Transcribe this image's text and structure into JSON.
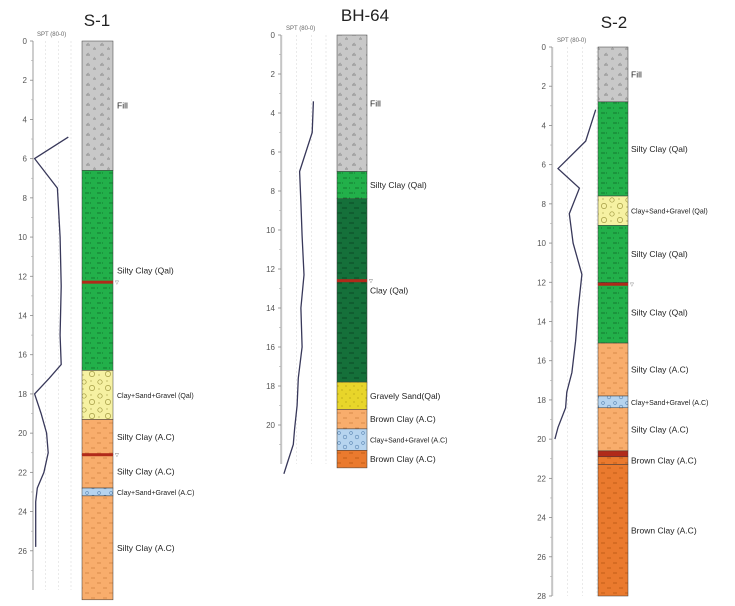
{
  "colors": {
    "fill": "#c8c8c8",
    "silty_clay_qal": "#22b04a",
    "clay_qal": "#15703a",
    "clay_sand_gravel_qal": "#f6f1a2",
    "silty_clay_ac": "#f8ad6c",
    "brown_clay_ac": "#ea7a2e",
    "gravely_sand_qal": "#e8d52a",
    "clay_sand_gravel_ac": "#b6d4ef",
    "water_line": "#b02a1a",
    "spt_curve": "#38385a"
  },
  "boreholes": [
    {
      "name": "S-1",
      "spt_label": "SPT (80-0)",
      "depth_ticks": [
        "0",
        "2",
        "4",
        "6",
        "8",
        "10",
        "12",
        "14",
        "16",
        "18",
        "20",
        "22",
        "24",
        "26"
      ],
      "water_marks": [
        {
          "depth": 12.3,
          "label": "▽"
        },
        {
          "depth": 21.1,
          "label": "▽"
        }
      ],
      "layers": [
        {
          "top": 0,
          "bottom": 6.6,
          "color": "fill",
          "label": "Fill"
        },
        {
          "top": 6.6,
          "bottom": 16.8,
          "color": "silty_clay_qal",
          "label": "Silty Clay (Qal)"
        },
        {
          "top": 16.8,
          "bottom": 19.3,
          "color": "clay_sand_gravel_qal",
          "label": "Clay+Sand+Gravel (Qal)"
        },
        {
          "top": 19.3,
          "bottom": 21.1,
          "color": "silty_clay_ac",
          "label": "Silty Clay (A.C)"
        },
        {
          "top": 21.1,
          "bottom": 22.8,
          "color": "silty_clay_ac",
          "label": "Silty Clay (A.C)"
        },
        {
          "top": 22.8,
          "bottom": 23.2,
          "color": "clay_sand_gravel_ac",
          "label": "Clay+Sand+Gravel (A.C)"
        },
        {
          "top": 23.2,
          "bottom": 28.5,
          "color": "silty_clay_ac",
          "label": "Silty Clay (A.C)"
        }
      ],
      "spt_curve": [
        [
          4.9,
          6.5
        ],
        [
          6.0,
          0.3
        ],
        [
          7.5,
          4.5
        ],
        [
          10.0,
          5.0
        ],
        [
          12.5,
          5.2
        ],
        [
          15.0,
          5.0
        ],
        [
          16.5,
          5.2
        ],
        [
          17.2,
          3.0
        ],
        [
          18.0,
          0.3
        ],
        [
          19.0,
          1.5
        ],
        [
          20.0,
          2.5
        ],
        [
          21.0,
          2.8
        ],
        [
          22.0,
          2.0
        ],
        [
          22.8,
          0.8
        ],
        [
          23.5,
          0.5
        ],
        [
          24.5,
          0.5
        ],
        [
          25.8,
          0.5
        ]
      ]
    },
    {
      "name": "BH-64",
      "spt_label": "SPT (80-0)",
      "depth_ticks": [
        "0",
        "2",
        "4",
        "6",
        "8",
        "10",
        "12",
        "14",
        "16",
        "18",
        "20"
      ],
      "water_marks": [
        {
          "depth": 12.6,
          "label": "▽"
        }
      ],
      "layers": [
        {
          "top": 0,
          "bottom": 7.0,
          "color": "fill",
          "label": "Fill"
        },
        {
          "top": 7.0,
          "bottom": 8.4,
          "color": "silty_clay_qal",
          "label": "Silty Clay (Qal)"
        },
        {
          "top": 8.4,
          "bottom": 17.8,
          "color": "clay_qal",
          "label": "Clay (Qal)"
        },
        {
          "top": 17.8,
          "bottom": 19.2,
          "color": "gravely_sand_qal",
          "label": "Gravely Sand(Qal)"
        },
        {
          "top": 19.2,
          "bottom": 20.2,
          "color": "silty_clay_ac",
          "label": "Brown Clay (A.C)"
        },
        {
          "top": 20.2,
          "bottom": 21.3,
          "color": "clay_sand_gravel_ac",
          "label": "Clay+Sand+Gravel (A.C)"
        },
        {
          "top": 21.3,
          "bottom": 22.2,
          "color": "brown_clay_ac",
          "label": "Brown Clay (A.C)"
        }
      ],
      "spt_curve": [
        [
          3.4,
          5.0
        ],
        [
          5.0,
          4.8
        ],
        [
          7.0,
          2.8
        ],
        [
          8.6,
          3.0
        ],
        [
          10.3,
          3.2
        ],
        [
          12.3,
          3.5
        ],
        [
          14.0,
          3.0
        ],
        [
          16.0,
          3.2
        ],
        [
          17.6,
          2.6
        ],
        [
          19.0,
          2.4
        ],
        [
          20.2,
          2.0
        ],
        [
          21.0,
          1.8
        ],
        [
          22.0,
          0.8
        ],
        [
          22.5,
          0.3
        ]
      ]
    },
    {
      "name": "S-2",
      "spt_label": "SPT (80-0)",
      "depth_ticks": [
        "0",
        "2",
        "4",
        "6",
        "8",
        "10",
        "12",
        "14",
        "16",
        "18",
        "20",
        "22",
        "24",
        "26",
        "28"
      ],
      "water_marks": [
        {
          "depth": 12.1,
          "label": "▽"
        }
      ],
      "layers": [
        {
          "top": 0,
          "bottom": 2.8,
          "color": "fill",
          "label": "Fill"
        },
        {
          "top": 2.8,
          "bottom": 7.6,
          "color": "silty_clay_qal",
          "label": "Silty Clay (Qal)"
        },
        {
          "top": 7.6,
          "bottom": 9.1,
          "color": "clay_sand_gravel_qal",
          "label": "Clay+Sand+Gravel (Qal)"
        },
        {
          "top": 9.1,
          "bottom": 12.0,
          "color": "silty_clay_qal",
          "label": "Silty Clay (Qal)"
        },
        {
          "top": 12.0,
          "bottom": 15.1,
          "color": "silty_clay_qal",
          "label": "Silty Clay (Qal)"
        },
        {
          "top": 15.1,
          "bottom": 17.8,
          "color": "silty_clay_ac",
          "label": "Silty Clay (A.C)"
        },
        {
          "top": 17.8,
          "bottom": 18.4,
          "color": "clay_sand_gravel_ac",
          "label": "Clay+Sand+Gravel (A.C)"
        },
        {
          "top": 18.4,
          "bottom": 20.6,
          "color": "silty_clay_ac",
          "label": "Silty Clay (A.C)"
        },
        {
          "top": 20.6,
          "bottom": 20.9,
          "color": "water_line",
          "label": ""
        },
        {
          "top": 20.9,
          "bottom": 21.3,
          "color": "brown_clay_ac",
          "label": "Brown Clay (A.C)"
        },
        {
          "top": 21.3,
          "bottom": 28.0,
          "color": "brown_clay_ac",
          "label": "Brown Clay (A.C)"
        }
      ],
      "spt_curve": [
        [
          3.2,
          6.8
        ],
        [
          4.8,
          5.2
        ],
        [
          6.2,
          0.8
        ],
        [
          7.2,
          4.2
        ],
        [
          8.5,
          2.6
        ],
        [
          10.0,
          3.2
        ],
        [
          11.6,
          4.6
        ],
        [
          13.4,
          4.0
        ],
        [
          15.0,
          3.6
        ],
        [
          16.6,
          3.0
        ],
        [
          17.6,
          2.2
        ],
        [
          18.4,
          2.0
        ],
        [
          19.4,
          0.8
        ],
        [
          20.0,
          0.3
        ]
      ]
    }
  ]
}
